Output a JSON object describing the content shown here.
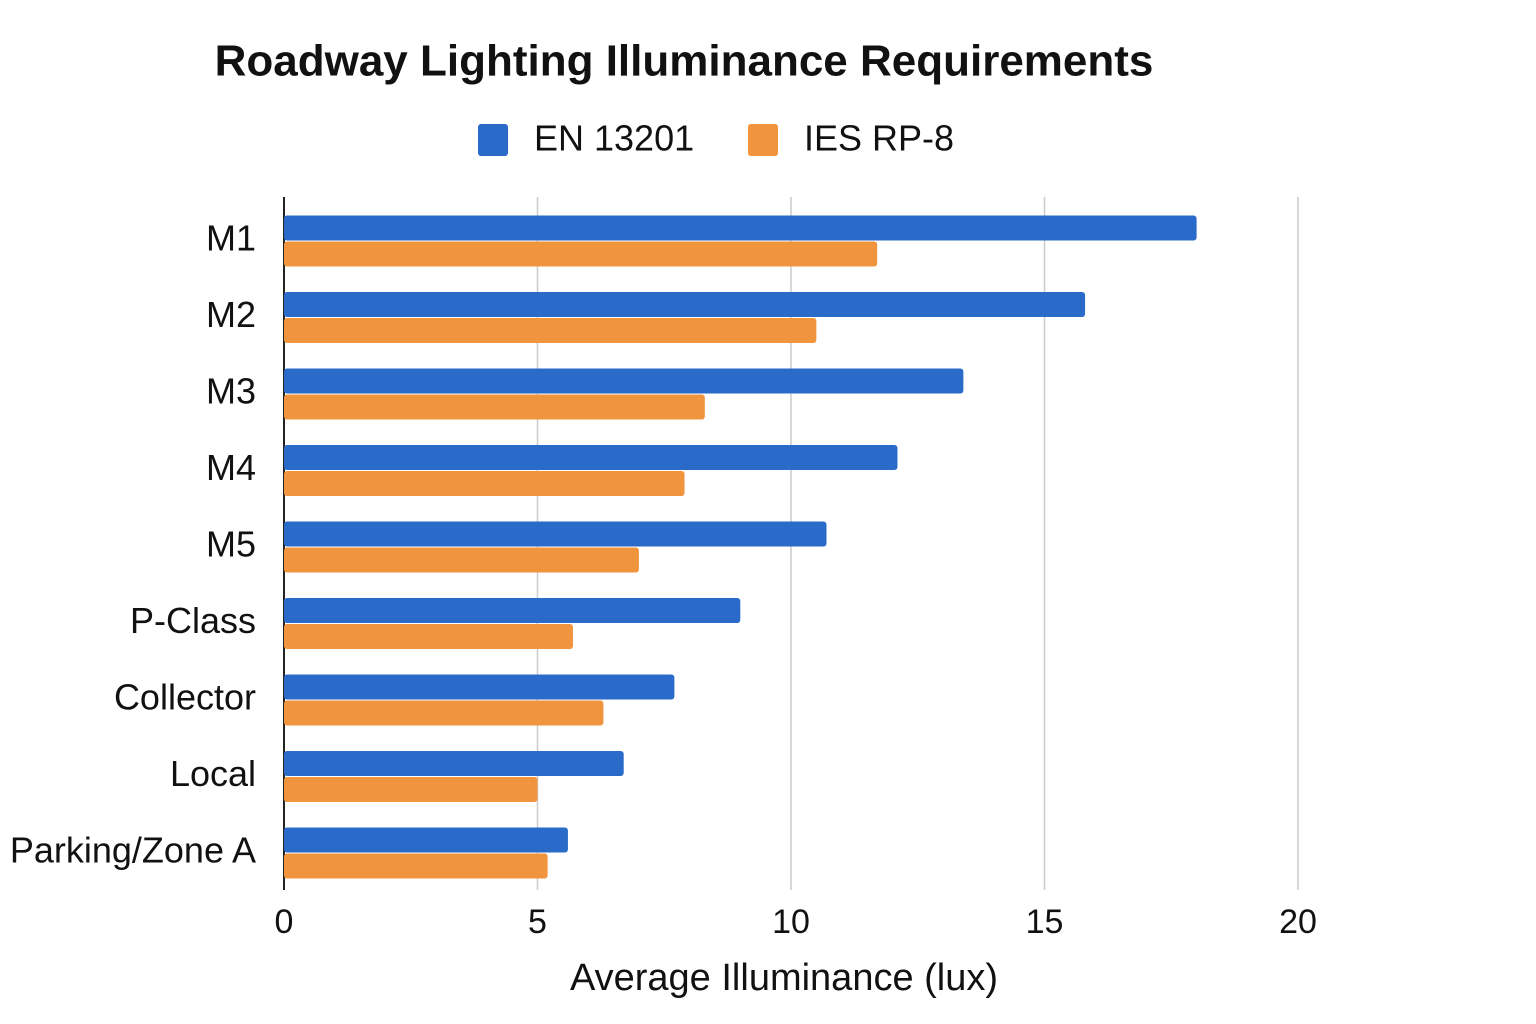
{
  "chart_data": {
    "type": "bar",
    "orientation": "horizontal",
    "title": "Roadway Lighting Illuminance Requirements",
    "x_label": "Average Illuminance (lux)",
    "categories": [
      "M1",
      "M2",
      "M3",
      "M4",
      "M5",
      "P-Class",
      "Collector",
      "Local",
      "Parking/Zone A"
    ],
    "series": [
      {
        "name": "EN 13201",
        "color": "#2a6ac8",
        "values": [
          18,
          15.8,
          13.4,
          12.1,
          10.7,
          9.0,
          7.7,
          6.7,
          5.6
        ]
      },
      {
        "name": "IES RP-8",
        "color": "#f0943d",
        "values": [
          11.7,
          10.5,
          8.3,
          7.9,
          7.0,
          5.7,
          6.3,
          5.0,
          5.2
        ]
      }
    ],
    "xlim": [
      0,
      20
    ],
    "xticks": [
      0,
      5,
      10,
      15,
      20
    ],
    "grid": true
  }
}
